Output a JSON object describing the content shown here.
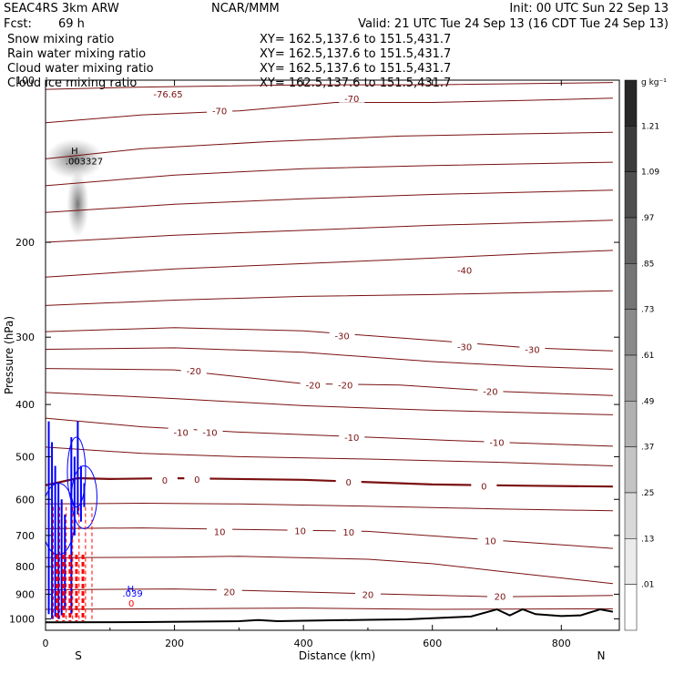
{
  "header": {
    "model": "SEAC4RS   3km ARW",
    "org": "NCAR/MMM",
    "init": "Init: 00 UTC Sun 22 Sep 13",
    "fcst_label": "Fcst:",
    "fcst_value": "69 h",
    "valid": "Valid: 21 UTC Tue 24 Sep 13 (16 CDT Tue 24 Sep 13)"
  },
  "fields": [
    {
      "name": "Snow mixing ratio",
      "xy": "XY= 162.5,137.6 to 151.5,431.7",
      "color": "#000000"
    },
    {
      "name": "Rain water mixing ratio",
      "xy": "XY= 162.5,137.6 to 151.5,431.7",
      "color": "#ff0000"
    },
    {
      "name": "Cloud water mixing ratio",
      "xy": "XY= 162.5,137.6 to 151.5,431.7",
      "color": "#0000ff"
    },
    {
      "name": "Cloud ice mixing ratio",
      "xy": "XY= 162.5,137.6 to 151.5,431.7",
      "color": "#000000"
    }
  ],
  "colors": {
    "isotherm": "#7a1010",
    "zero_isotherm": "#7a1010",
    "terrain": "#000000",
    "cloud_water": "#0000ff",
    "rain": "#ff0000"
  },
  "chart_data": {
    "type": "contour",
    "xlabel": "Distance (km)",
    "ylabel": "Pressure (hPa)",
    "xlim": [
      0,
      890
    ],
    "ylim": [
      1050,
      100
    ],
    "y_scale": "log",
    "x_ticks": [
      "0",
      "200",
      "400",
      "600",
      "800"
    ],
    "x_tick_values": [
      0,
      200,
      400,
      600,
      800
    ],
    "y_ticks": [
      "100",
      "200",
      "300",
      "400",
      "500",
      "600",
      "700",
      "800",
      "900",
      "1000"
    ],
    "y_tick_values": [
      100,
      200,
      300,
      400,
      500,
      600,
      700,
      800,
      900,
      1000
    ],
    "end_labels": {
      "left": "S",
      "right": "N"
    },
    "colorbar": {
      "unit": "g kg⁻¹",
      "labels": [
        "1.21",
        "1.09",
        ".97",
        ".85",
        ".73",
        ".61",
        ".49",
        ".37",
        ".25",
        ".13",
        ".01"
      ]
    },
    "isotherm_labels": [
      {
        "text": "-76.65",
        "x": 190,
        "p": 106
      },
      {
        "text": "-70",
        "x": 270,
        "p": 114
      },
      {
        "text": "-70",
        "x": 475,
        "p": 108
      },
      {
        "text": "-40",
        "x": 650,
        "p": 225
      },
      {
        "text": "-30",
        "x": 460,
        "p": 298
      },
      {
        "text": "-30",
        "x": 650,
        "p": 312
      },
      {
        "text": "-30",
        "x": 755,
        "p": 316
      },
      {
        "text": "-20",
        "x": 230,
        "p": 346
      },
      {
        "text": "-20",
        "x": 415,
        "p": 368
      },
      {
        "text": "-20",
        "x": 465,
        "p": 368
      },
      {
        "text": "-20",
        "x": 690,
        "p": 378
      },
      {
        "text": "-10",
        "x": 210,
        "p": 450
      },
      {
        "text": "-10",
        "x": 255,
        "p": 450
      },
      {
        "text": "-10",
        "x": 475,
        "p": 460
      },
      {
        "text": "-10",
        "x": 700,
        "p": 470
      },
      {
        "text": "0",
        "x": 185,
        "p": 552
      },
      {
        "text": "0",
        "x": 235,
        "p": 550
      },
      {
        "text": "0",
        "x": 470,
        "p": 557
      },
      {
        "text": "0",
        "x": 680,
        "p": 566
      },
      {
        "text": "10",
        "x": 270,
        "p": 688
      },
      {
        "text": "10",
        "x": 395,
        "p": 685
      },
      {
        "text": "10",
        "x": 470,
        "p": 690
      },
      {
        "text": "10",
        "x": 690,
        "p": 715
      },
      {
        "text": "20",
        "x": 285,
        "p": 890
      },
      {
        "text": "20",
        "x": 500,
        "p": 900
      },
      {
        "text": "20",
        "x": 705,
        "p": 907
      }
    ],
    "isotherms": [
      {
        "level": 10,
        "points": [
          [
            0,
            104
          ],
          [
            150,
            103
          ],
          [
            400,
            102
          ],
          [
            600,
            102
          ],
          [
            880,
            101
          ]
        ]
      },
      {
        "level": -70,
        "points": [
          [
            0,
            120
          ],
          [
            150,
            116
          ],
          [
            300,
            114
          ],
          [
            450,
            110
          ],
          [
            600,
            110
          ],
          [
            750,
            109
          ],
          [
            880,
            108
          ]
        ]
      },
      {
        "level": -60,
        "points": [
          [
            0,
            140
          ],
          [
            150,
            134
          ],
          [
            350,
            130
          ],
          [
            550,
            127
          ],
          [
            700,
            126
          ],
          [
            880,
            125
          ]
        ]
      },
      {
        "level": -55,
        "points": [
          [
            0,
            157
          ],
          [
            200,
            150
          ],
          [
            400,
            146
          ],
          [
            600,
            144
          ],
          [
            880,
            142
          ]
        ]
      },
      {
        "level": -50,
        "points": [
          [
            0,
            176
          ],
          [
            200,
            170
          ],
          [
            400,
            166
          ],
          [
            600,
            163
          ],
          [
            880,
            160
          ]
        ]
      },
      {
        "level": -45,
        "points": [
          [
            0,
            200
          ],
          [
            200,
            194
          ],
          [
            400,
            190
          ],
          [
            600,
            186
          ],
          [
            880,
            182
          ]
        ]
      },
      {
        "level": -40,
        "points": [
          [
            0,
            232
          ],
          [
            200,
            224
          ],
          [
            400,
            219
          ],
          [
            600,
            214
          ],
          [
            750,
            210
          ],
          [
            880,
            207
          ]
        ]
      },
      {
        "level": -35,
        "points": [
          [
            0,
            262
          ],
          [
            200,
            256
          ],
          [
            400,
            252
          ],
          [
            600,
            250
          ],
          [
            880,
            246
          ]
        ]
      },
      {
        "level": -30,
        "points": [
          [
            0,
            293
          ],
          [
            200,
            288
          ],
          [
            400,
            292
          ],
          [
            600,
            304
          ],
          [
            750,
            314
          ],
          [
            880,
            318
          ]
        ]
      },
      {
        "level": -25,
        "points": [
          [
            0,
            316
          ],
          [
            200,
            314
          ],
          [
            400,
            320
          ],
          [
            600,
            333
          ],
          [
            750,
            340
          ],
          [
            880,
            344
          ]
        ]
      },
      {
        "level": -20,
        "points": [
          [
            0,
            343
          ],
          [
            200,
            345
          ],
          [
            400,
            366
          ],
          [
            550,
            368
          ],
          [
            700,
            378
          ],
          [
            880,
            385
          ]
        ]
      },
      {
        "level": -15,
        "points": [
          [
            0,
            380
          ],
          [
            200,
            390
          ],
          [
            400,
            402
          ],
          [
            600,
            410
          ],
          [
            880,
            418
          ]
        ]
      },
      {
        "level": -10,
        "points": [
          [
            0,
            424
          ],
          [
            150,
            440
          ],
          [
            300,
            450
          ],
          [
            500,
            460
          ],
          [
            700,
            470
          ],
          [
            880,
            478
          ]
        ]
      },
      {
        "level": -5,
        "points": [
          [
            0,
            480
          ],
          [
            150,
            493
          ],
          [
            300,
            500
          ],
          [
            500,
            505
          ],
          [
            700,
            512
          ],
          [
            880,
            520
          ]
        ]
      },
      {
        "level": 0,
        "points": [
          [
            0,
            565
          ],
          [
            50,
            548
          ],
          [
            100,
            550
          ],
          [
            200,
            548
          ],
          [
            400,
            552
          ],
          [
            600,
            563
          ],
          [
            750,
            566
          ],
          [
            880,
            568
          ]
        ]
      },
      {
        "level": 5,
        "points": [
          [
            0,
            612
          ],
          [
            150,
            610
          ],
          [
            300,
            612
          ],
          [
            500,
            618
          ],
          [
            700,
            625
          ],
          [
            880,
            630
          ]
        ]
      },
      {
        "level": 10,
        "points": [
          [
            0,
            680
          ],
          [
            150,
            678
          ],
          [
            300,
            682
          ],
          [
            500,
            688
          ],
          [
            700,
            715
          ],
          [
            880,
            740
          ]
        ]
      },
      {
        "level": 15,
        "points": [
          [
            0,
            770
          ],
          [
            200,
            768
          ],
          [
            300,
            765
          ],
          [
            500,
            775
          ],
          [
            600,
            790
          ],
          [
            700,
            815
          ],
          [
            880,
            860
          ]
        ]
      },
      {
        "level": 20,
        "points": [
          [
            0,
            883
          ],
          [
            200,
            880
          ],
          [
            300,
            885
          ],
          [
            500,
            898
          ],
          [
            700,
            910
          ],
          [
            880,
            905
          ]
        ]
      },
      {
        "level": 25,
        "points": [
          [
            0,
            960
          ],
          [
            200,
            958
          ],
          [
            400,
            955
          ],
          [
            600,
            960
          ],
          [
            880,
            958
          ]
        ]
      }
    ],
    "terrain": [
      [
        0,
        1015
      ],
      [
        150,
        1014
      ],
      [
        300,
        1010
      ],
      [
        330,
        1005
      ],
      [
        360,
        1010
      ],
      [
        400,
        1008
      ],
      [
        500,
        1004
      ],
      [
        560,
        1002
      ],
      [
        660,
        990
      ],
      [
        700,
        960
      ],
      [
        720,
        985
      ],
      [
        740,
        960
      ],
      [
        760,
        980
      ],
      [
        800,
        988
      ],
      [
        830,
        985
      ],
      [
        860,
        960
      ],
      [
        880,
        970
      ]
    ],
    "annotations": [
      {
        "text": "H",
        "x": 45,
        "p": 135,
        "color": "#000000"
      },
      {
        "text": ".003327",
        "x": 60,
        "p": 141,
        "color": "#000000"
      },
      {
        "text": "H",
        "x": 132,
        "p": 878,
        "color": "#0000ff"
      },
      {
        "text": ".039",
        "x": 135,
        "p": 895,
        "color": "#0000ff"
      },
      {
        "text": "0",
        "x": 133,
        "p": 935,
        "color": "#ff0000"
      }
    ]
  }
}
